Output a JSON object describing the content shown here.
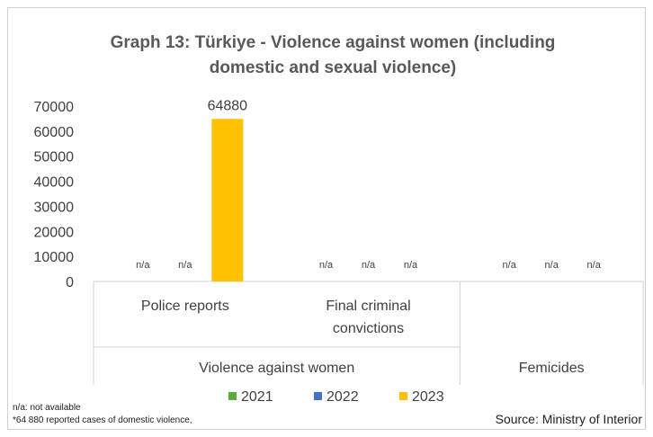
{
  "chart_data": {
    "type": "bar",
    "title": "Graph 13: Türkiye - Violence against women (including domestic and sexual violence)",
    "title_lines": [
      "Graph 13: Türkiye - Violence against women (including",
      "domestic and sexual violence)"
    ],
    "categories": [
      {
        "label_lines": [
          "Police reports"
        ],
        "group": "Violence against women"
      },
      {
        "label_lines": [
          "Final criminal",
          "convictions"
        ],
        "group": "Violence against women"
      },
      {
        "label_lines": [
          ""
        ],
        "group": "Femicides"
      }
    ],
    "groups": [
      {
        "label": "Violence against women",
        "span": 2
      },
      {
        "label": "Femicides",
        "span": 1
      }
    ],
    "series": [
      {
        "name": "2021",
        "color": "#5aab3c",
        "values": [
          null,
          null,
          null
        ],
        "labels": [
          "n/a",
          "n/a",
          "n/a"
        ]
      },
      {
        "name": "2022",
        "color": "#4472c4",
        "values": [
          null,
          null,
          null
        ],
        "labels": [
          "n/a",
          "n/a",
          "n/a"
        ]
      },
      {
        "name": "2023",
        "color": "#ffc000",
        "values": [
          64880,
          null,
          null
        ],
        "labels": [
          "64880",
          "n/a",
          "n/a"
        ]
      }
    ],
    "ylim": [
      0,
      70000
    ],
    "yticks": [
      "0",
      "10000",
      "20000",
      "30000",
      "40000",
      "50000",
      "60000",
      "70000"
    ],
    "grid": false,
    "legend": "bottom"
  },
  "notes": [
    "n/a: not available",
    "*64 880 reported cases of domestic violence,"
  ],
  "source": "Source: Ministry of Interior"
}
